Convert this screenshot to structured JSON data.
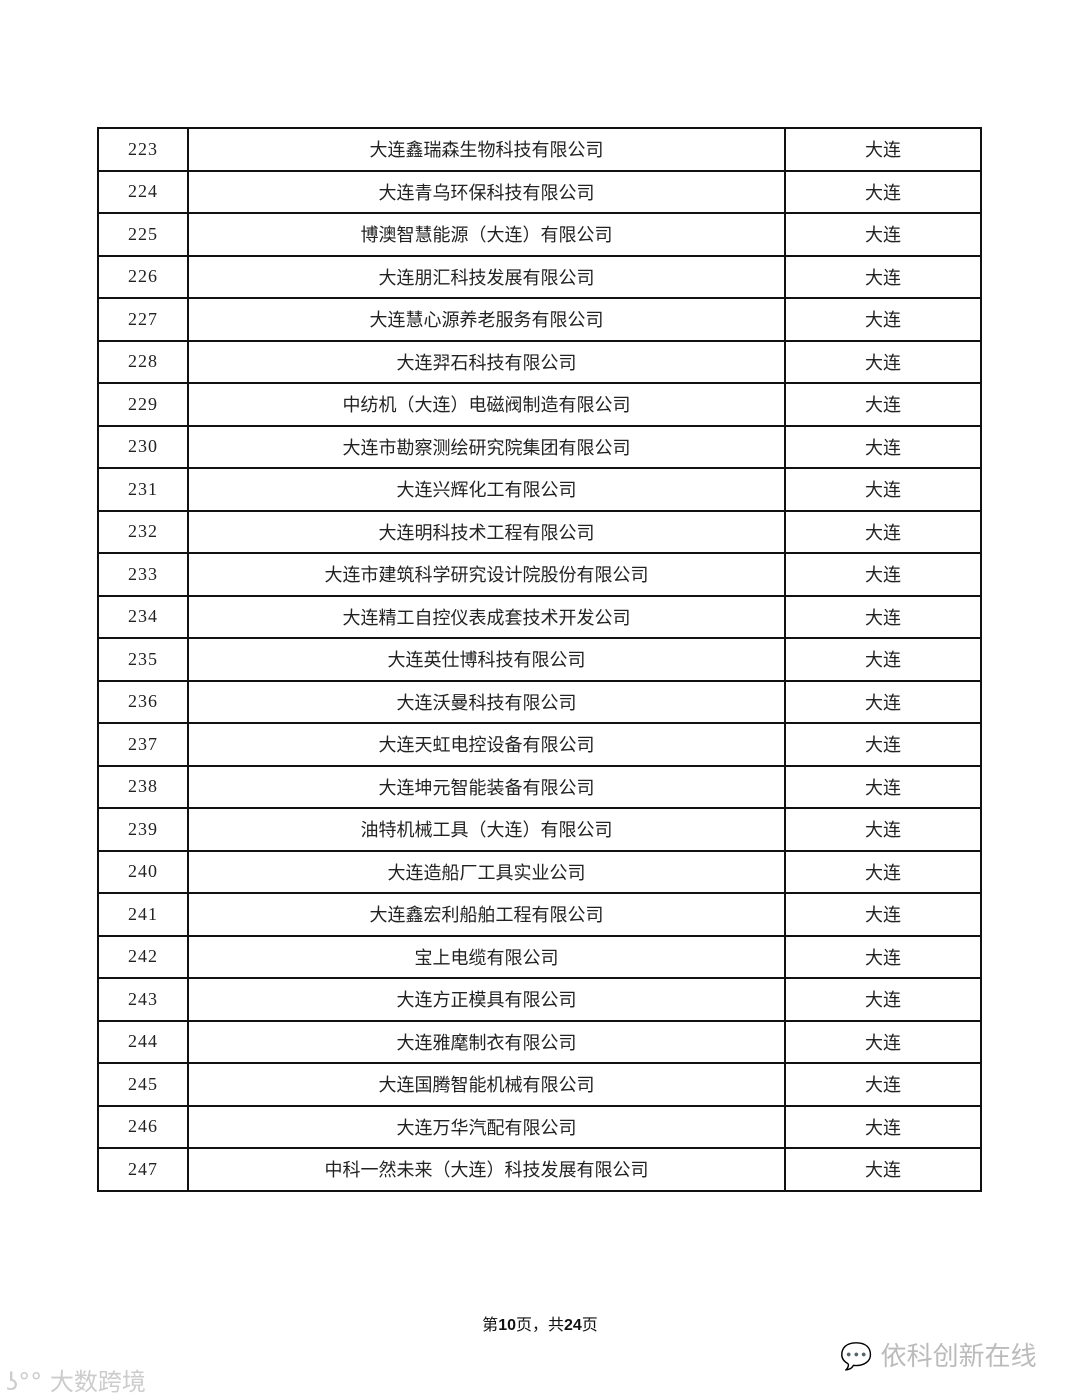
{
  "table": {
    "rows": [
      {
        "no": "223",
        "name": "大连鑫瑞森生物科技有限公司",
        "city": "大连"
      },
      {
        "no": "224",
        "name": "大连青乌环保科技有限公司",
        "city": "大连"
      },
      {
        "no": "225",
        "name": "博澳智慧能源（大连）有限公司",
        "city": "大连"
      },
      {
        "no": "226",
        "name": "大连朋汇科技发展有限公司",
        "city": "大连"
      },
      {
        "no": "227",
        "name": "大连慧心源养老服务有限公司",
        "city": "大连"
      },
      {
        "no": "228",
        "name": "大连羿石科技有限公司",
        "city": "大连"
      },
      {
        "no": "229",
        "name": "中纺机（大连）电磁阀制造有限公司",
        "city": "大连"
      },
      {
        "no": "230",
        "name": "大连市勘察测绘研究院集团有限公司",
        "city": "大连"
      },
      {
        "no": "231",
        "name": "大连兴辉化工有限公司",
        "city": "大连"
      },
      {
        "no": "232",
        "name": "大连明科技术工程有限公司",
        "city": "大连"
      },
      {
        "no": "233",
        "name": "大连市建筑科学研究设计院股份有限公司",
        "city": "大连"
      },
      {
        "no": "234",
        "name": "大连精工自控仪表成套技术开发公司",
        "city": "大连"
      },
      {
        "no": "235",
        "name": "大连英仕博科技有限公司",
        "city": "大连"
      },
      {
        "no": "236",
        "name": "大连沃曼科技有限公司",
        "city": "大连"
      },
      {
        "no": "237",
        "name": "大连天虹电控设备有限公司",
        "city": "大连"
      },
      {
        "no": "238",
        "name": "大连坤元智能装备有限公司",
        "city": "大连"
      },
      {
        "no": "239",
        "name": "油特机械工具（大连）有限公司",
        "city": "大连"
      },
      {
        "no": "240",
        "name": "大连造船厂工具实业公司",
        "city": "大连"
      },
      {
        "no": "241",
        "name": "大连鑫宏利船舶工程有限公司",
        "city": "大连"
      },
      {
        "no": "242",
        "name": "宝上电缆有限公司",
        "city": "大连"
      },
      {
        "no": "243",
        "name": "大连方正模具有限公司",
        "city": "大连"
      },
      {
        "no": "244",
        "name": "大连雅麾制衣有限公司",
        "city": "大连"
      },
      {
        "no": "245",
        "name": "大连国腾智能机械有限公司",
        "city": "大连"
      },
      {
        "no": "246",
        "name": "大连万华汽配有限公司",
        "city": "大连"
      },
      {
        "no": "247",
        "name": "中科一然未来（大连）科技发展有限公司",
        "city": "大连"
      }
    ]
  },
  "footer": {
    "prefix": "第",
    "page": "10",
    "mid": "页，共",
    "total": "24",
    "suffix": "页"
  },
  "watermarks": {
    "wechat": "依科创新在线",
    "corner": "大数跨境",
    "wechat_icon": "wechat-icon"
  }
}
